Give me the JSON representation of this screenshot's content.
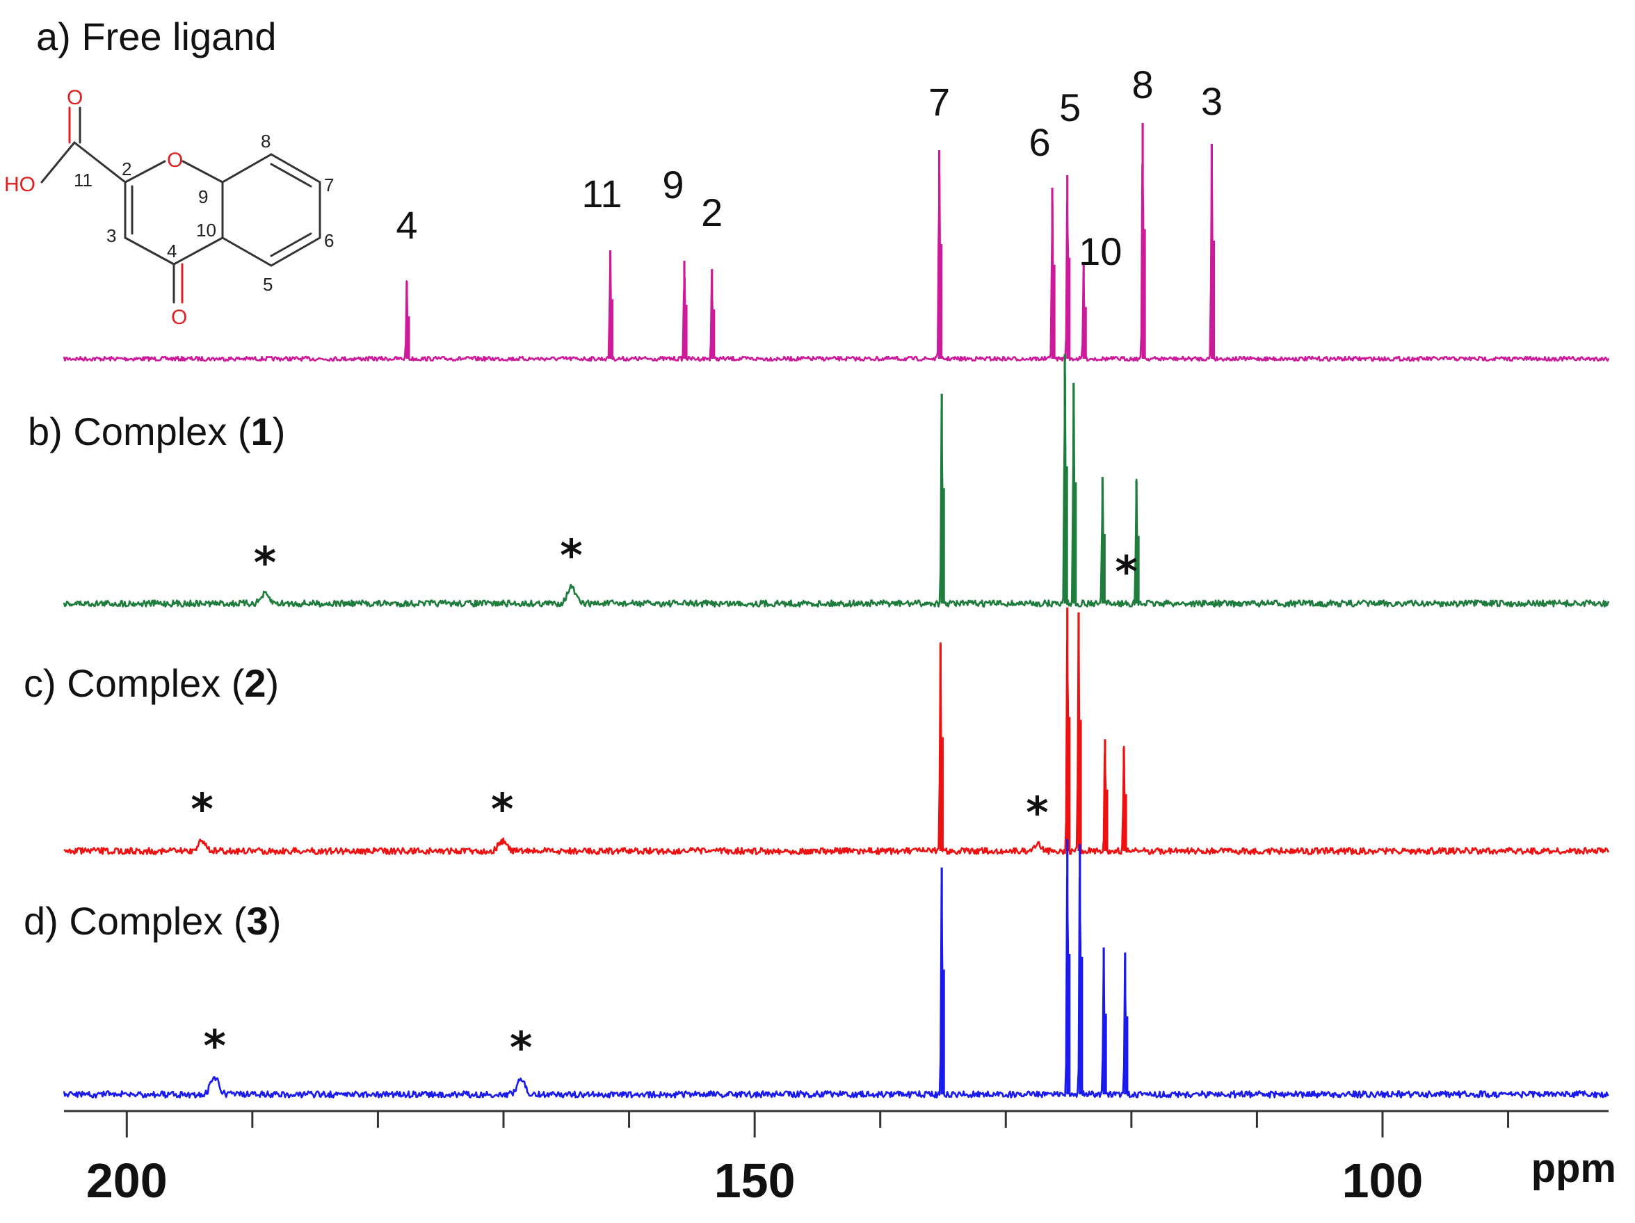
{
  "chart_data": {
    "type": "line",
    "xlabel": "ppm",
    "xlim": [
      205,
      82
    ],
    "x_ticks_major": [
      200,
      150,
      100
    ],
    "x_ticks_minor": [
      190,
      180,
      170,
      160,
      140,
      130,
      120,
      110,
      90
    ],
    "series": [
      {
        "name": "a) Free ligand",
        "title_parts": [
          "a) Free ligand"
        ],
        "color": "#cc1a9a",
        "peaks": [
          {
            "x": 177.7,
            "h": 0.37,
            "label": "4"
          },
          {
            "x": 161.5,
            "h": 0.52,
            "label": "11"
          },
          {
            "x": 155.6,
            "h": 0.47,
            "label": "9"
          },
          {
            "x": 153.4,
            "h": 0.43,
            "label": "2"
          },
          {
            "x": 135.3,
            "h": 1.0,
            "label": "7"
          },
          {
            "x": 126.3,
            "h": 0.82,
            "label": "6"
          },
          {
            "x": 125.1,
            "h": 0.88,
            "label": "5"
          },
          {
            "x": 123.8,
            "h": 0.45,
            "label": "10"
          },
          {
            "x": 119.1,
            "h": 1.13,
            "label": "8"
          },
          {
            "x": 113.6,
            "h": 1.03,
            "label": "3"
          }
        ],
        "bumps": [],
        "asterisks": []
      },
      {
        "name": "b) Complex (1)",
        "title_parts": [
          "b) Complex (",
          "1",
          ")"
        ],
        "color": "#1e7d3c",
        "peaks": [
          {
            "x": 135.1,
            "h": 1.16
          },
          {
            "x": 125.3,
            "h": 1.38
          },
          {
            "x": 124.6,
            "h": 1.22
          },
          {
            "x": 122.3,
            "h": 0.7
          },
          {
            "x": 119.6,
            "h": 0.68
          }
        ],
        "bumps": [
          {
            "x": 189.0,
            "h": 0.05
          },
          {
            "x": 164.6,
            "h": 0.09
          }
        ],
        "asterisks": [
          189.0,
          164.6,
          120.4
        ]
      },
      {
        "name": "c) Complex (2)",
        "title_parts": [
          "c) Complex (",
          "2",
          ")"
        ],
        "color": "#ee1111",
        "peaks": [
          {
            "x": 135.2,
            "h": 1.24
          },
          {
            "x": 125.1,
            "h": 1.46
          },
          {
            "x": 124.2,
            "h": 1.43
          },
          {
            "x": 122.1,
            "h": 0.67
          },
          {
            "x": 120.6,
            "h": 0.62
          }
        ],
        "bumps": [
          {
            "x": 194.0,
            "h": 0.06
          },
          {
            "x": 170.1,
            "h": 0.06
          },
          {
            "x": 127.5,
            "h": 0.04
          }
        ],
        "asterisks": [
          194.0,
          170.1,
          127.5
        ]
      },
      {
        "name": "d) Complex (3)",
        "title_parts": [
          "d) Complex (",
          "3",
          ")"
        ],
        "color": "#1a1aee",
        "peaks": [
          {
            "x": 135.1,
            "h": 1.36
          },
          {
            "x": 125.1,
            "h": 1.53
          },
          {
            "x": 124.1,
            "h": 1.5
          },
          {
            "x": 122.2,
            "h": 0.88
          },
          {
            "x": 120.5,
            "h": 0.85
          }
        ],
        "bumps": [
          {
            "x": 193.0,
            "h": 0.1
          },
          {
            "x": 168.6,
            "h": 0.09
          }
        ],
        "asterisks": [
          193.0,
          168.6
        ]
      }
    ],
    "grid": false,
    "legend": "none"
  },
  "structure": {
    "name": "chromone-2-carboxylic acid",
    "atom_labels": {
      "O_carbonyl_acid": "O",
      "OH": "HO",
      "O_ring": "O",
      "O_ketone": "O"
    },
    "carbon_numbers": [
      "11",
      "2",
      "3",
      "4",
      "10",
      "9",
      "8",
      "7",
      "6",
      "5"
    ]
  }
}
